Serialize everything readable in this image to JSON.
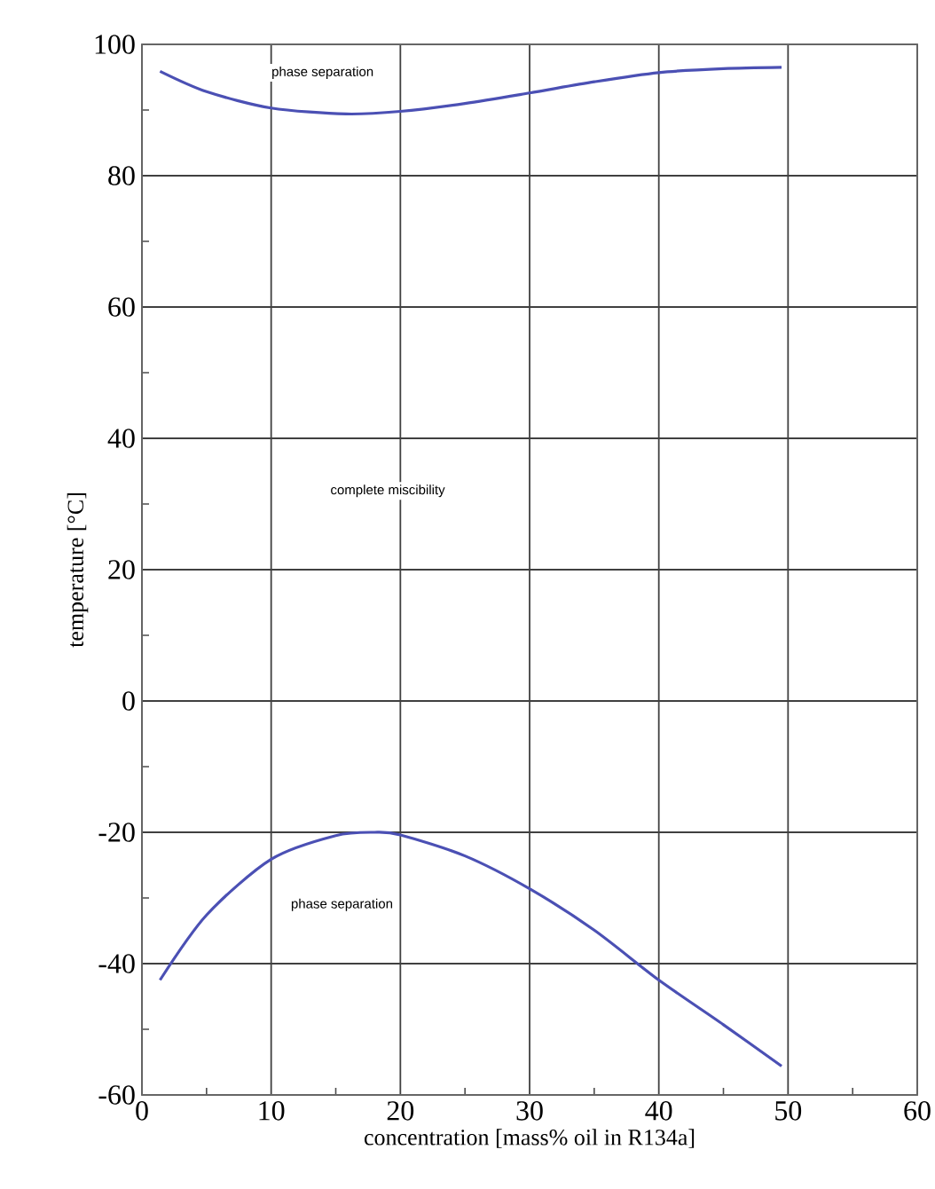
{
  "chart_data": {
    "type": "line",
    "xlabel": "concentration [mass% oil in R134a]",
    "ylabel": "temperature [°C]",
    "series": [
      {
        "color": "#4b50b4",
        "x": [
          1.4,
          5,
          10,
          15.8,
          20,
          25,
          30,
          35,
          40,
          45,
          49.5
        ],
        "values": [
          95.9,
          92.8,
          90.3,
          89.4,
          89.8,
          91.0,
          92.6,
          94.3,
          95.7,
          96.3,
          96.5
        ]
      },
      {
        "color": "#4b50b4",
        "x": [
          1.4,
          5,
          10,
          15,
          18,
          20,
          25,
          30,
          35,
          40,
          45,
          49.5
        ],
        "values": [
          -42.5,
          -32.6,
          -24.1,
          -20.5,
          -20,
          -20.4,
          -23.6,
          -28.6,
          -34.9,
          -42.5,
          -49.3,
          -55.6
        ]
      }
    ],
    "xlim": [
      0,
      60
    ],
    "xticks": [
      0,
      10,
      20,
      30,
      40,
      50,
      60
    ],
    "ylim": [
      -60,
      100
    ],
    "yticks": [
      -60,
      -40,
      -20,
      0,
      20,
      40,
      60,
      80,
      100
    ],
    "grid": true,
    "marker": "none",
    "line_style": "solid",
    "annotations": [
      "phase separation",
      "complete miscibility",
      "phase separation"
    ]
  }
}
